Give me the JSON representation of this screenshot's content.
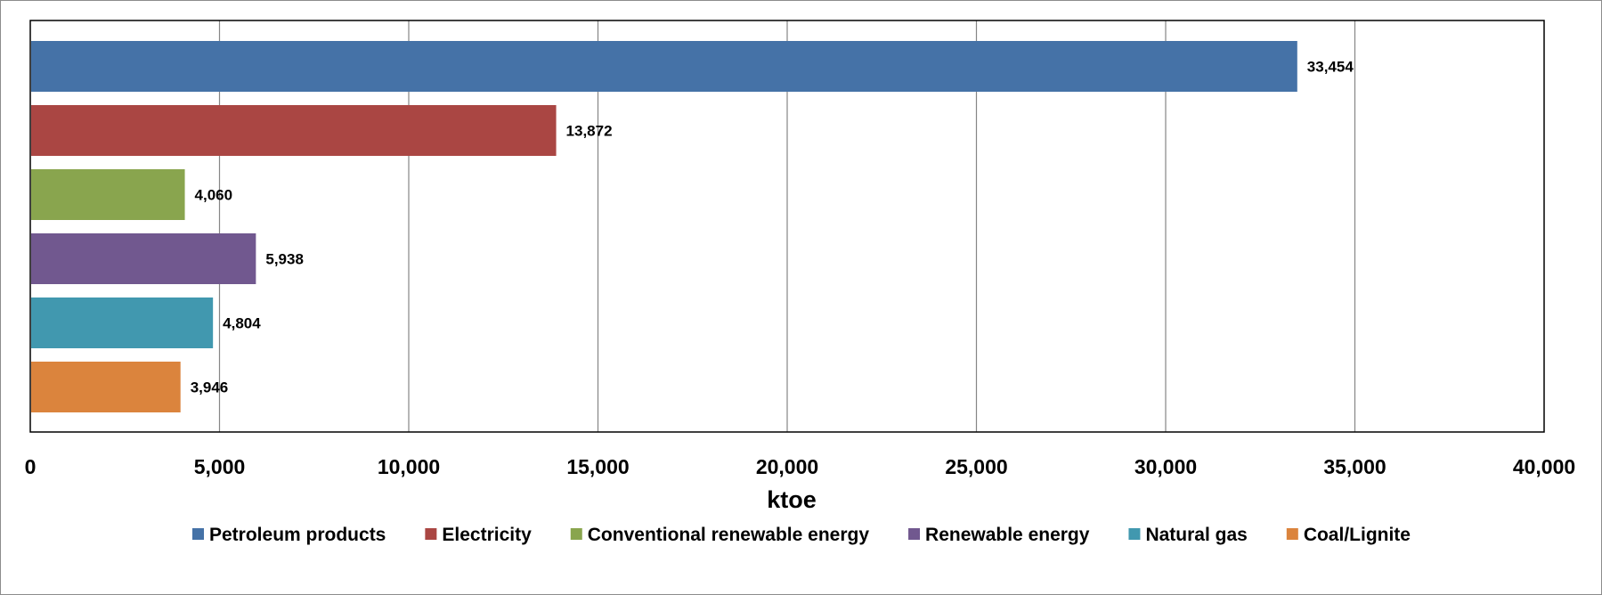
{
  "chart_data": {
    "type": "bar",
    "orientation": "horizontal",
    "xlabel": "ktoe",
    "xlim": [
      0,
      40000
    ],
    "x_ticks": [
      0,
      5000,
      10000,
      15000,
      20000,
      25000,
      30000,
      35000,
      40000
    ],
    "x_tick_labels": [
      "0",
      "5,000",
      "10,000",
      "15,000",
      "20,000",
      "25,000",
      "30,000",
      "35,000",
      "40,000"
    ],
    "grid": "vertical",
    "legend_position": "bottom",
    "series": [
      {
        "name": "Petroleum products",
        "value": 33454,
        "label": "33,454",
        "color": "#4572A7"
      },
      {
        "name": "Electricity",
        "value": 13872,
        "label": "13,872",
        "color": "#AA4643"
      },
      {
        "name": "Conventional renewable energy",
        "value": 4060,
        "label": "4,060",
        "color": "#89A54E"
      },
      {
        "name": "Renewable energy",
        "value": 5938,
        "label": "5,938",
        "color": "#71588F"
      },
      {
        "name": "Natural gas",
        "value": 4804,
        "label": "4,804",
        "color": "#4198AF"
      },
      {
        "name": "Coal/Lignite",
        "value": 3946,
        "label": "3,946",
        "color": "#DB843D"
      }
    ]
  }
}
